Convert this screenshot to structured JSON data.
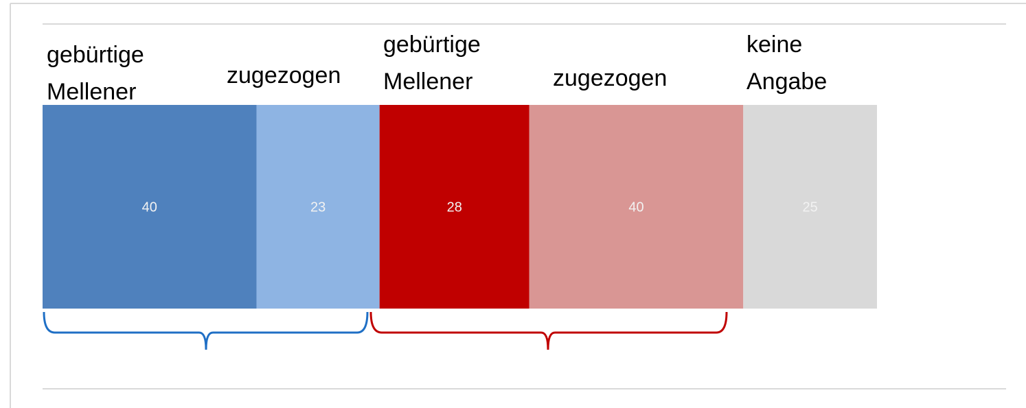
{
  "chart_data": {
    "type": "stacked_bar",
    "categories": [
      "gebürtige Mellener",
      "zugezogen",
      "gebürtige Mellener",
      "zugezogen",
      "keine Angabe"
    ],
    "values": [
      40,
      23,
      28,
      40,
      25
    ],
    "colors": [
      "#4f81bd",
      "#8eb4e3",
      "#c00000",
      "#d99694",
      "#d9d9d9"
    ]
  }
}
